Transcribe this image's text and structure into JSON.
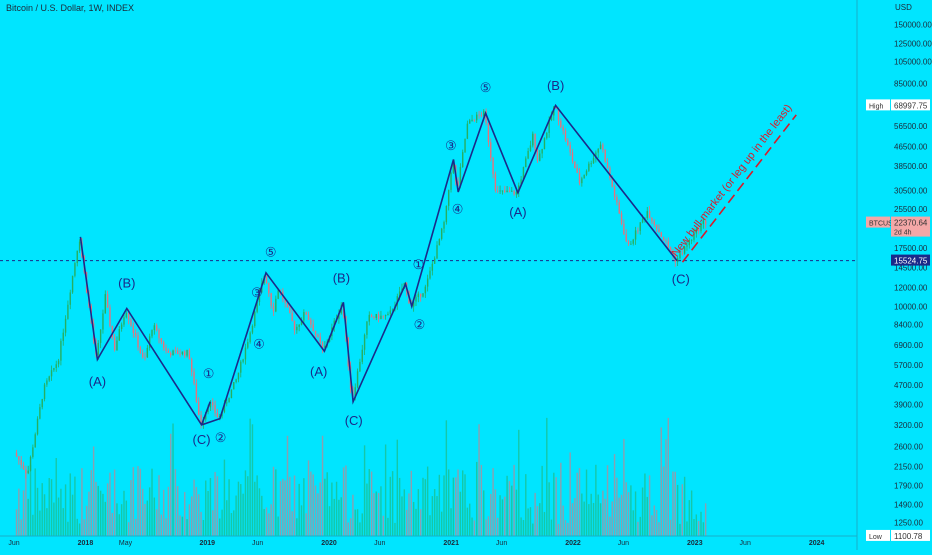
{
  "chart_data": {
    "type": "candlestick",
    "title": "Bitcoin / U.S. Dollar, 1W, INDEX",
    "symbol": "BTCUSD",
    "currency": "USD",
    "scale": "log",
    "grid": false,
    "x_ticks": [
      "Jun",
      "2018",
      "May",
      "2019",
      "Jun",
      "2020",
      "Jun",
      "2021",
      "Jun",
      "2022",
      "Jun",
      "2023",
      "Jun",
      "2024"
    ],
    "x_tick_dates": [
      "2017-06-01",
      "2018-01-01",
      "2018-05-01",
      "2019-01-01",
      "2019-06-01",
      "2020-01-01",
      "2020-06-01",
      "2021-01-01",
      "2021-06-01",
      "2022-01-01",
      "2022-06-01",
      "2023-01-01",
      "2023-06-01",
      "2024-01-01"
    ],
    "y_ticks": [
      150000,
      125000,
      105000,
      85000,
      56500,
      46500,
      38500,
      30500,
      25500,
      17500,
      14500,
      12000,
      10000,
      8400,
      6900,
      5700,
      4700,
      3900,
      3200,
      2600,
      2150,
      1790,
      1490,
      1250
    ],
    "y_tick_labels": [
      "150000.00",
      "125000.00",
      "105000.00",
      "85000.00",
      "56500.00",
      "46500.00",
      "38500.00",
      "30500.00",
      "25500.00",
      "17500.00",
      "14500.00",
      "12000.00",
      "10000.00",
      "8400.00",
      "6900.00",
      "5700.00",
      "4700.00",
      "3900.00",
      "3200.00",
      "2600.00",
      "2150.00",
      "1790.00",
      "1490.00",
      "1250.00"
    ],
    "ylim": [
      1100,
      190000
    ],
    "price_tags": [
      {
        "label": "High",
        "value": "68997.75",
        "level": 68997.75,
        "color": "#ffffff",
        "text_color": "#333333"
      },
      {
        "label": "BTCUSD",
        "value": "22370.64",
        "level": 22370.64,
        "sub": "2d 4h",
        "color": "#f4a7a7",
        "text_color": "#333333"
      },
      {
        "label": "",
        "value": "15524.75",
        "level": 15524.75,
        "color": "#1a2a8a",
        "text_color": "#ffffff"
      },
      {
        "label": "Low",
        "value": "1100.78",
        "level": 1100.78,
        "color": "#ffffff",
        "text_color": "#333333"
      }
    ],
    "support_line": 15524.75,
    "price_path": [
      [
        "2017-06-01",
        2500
      ],
      [
        "2017-07-15",
        2000
      ],
      [
        "2017-09-01",
        4500
      ],
      [
        "2017-10-15",
        6000
      ],
      [
        "2017-12-17",
        19500
      ],
      [
        "2018-02-06",
        6000
      ],
      [
        "2018-03-05",
        11000
      ],
      [
        "2018-04-01",
        6600
      ],
      [
        "2018-05-05",
        9800
      ],
      [
        "2018-06-29",
        5800
      ],
      [
        "2018-07-25",
        8400
      ],
      [
        "2018-09-05",
        6400
      ],
      [
        "2018-11-10",
        6400
      ],
      [
        "2018-12-15",
        3200
      ],
      [
        "2019-01-10",
        4000
      ],
      [
        "2019-02-08",
        3400
      ],
      [
        "2019-04-03",
        5000
      ],
      [
        "2019-05-15",
        8000
      ],
      [
        "2019-06-26",
        13800
      ],
      [
        "2019-07-20",
        9500
      ],
      [
        "2019-08-06",
        12000
      ],
      [
        "2019-09-25",
        8000
      ],
      [
        "2019-10-26",
        9500
      ],
      [
        "2019-12-18",
        6500
      ],
      [
        "2020-02-13",
        10400
      ],
      [
        "2020-03-13",
        4000
      ],
      [
        "2020-05-01",
        9000
      ],
      [
        "2020-07-01",
        9100
      ],
      [
        "2020-08-17",
        12400
      ],
      [
        "2020-09-05",
        10000
      ],
      [
        "2020-10-20",
        12000
      ],
      [
        "2020-12-17",
        23000
      ],
      [
        "2021-01-08",
        41000
      ],
      [
        "2021-01-22",
        30000
      ],
      [
        "2021-02-21",
        57000
      ],
      [
        "2021-03-13",
        61000
      ],
      [
        "2021-04-14",
        64000
      ],
      [
        "2021-05-19",
        30000
      ],
      [
        "2021-07-20",
        29800
      ],
      [
        "2021-09-07",
        52000
      ],
      [
        "2021-09-21",
        40500
      ],
      [
        "2021-11-10",
        69000
      ],
      [
        "2022-01-24",
        33000
      ],
      [
        "2022-03-29",
        48000
      ],
      [
        "2022-06-18",
        17600
      ],
      [
        "2022-08-15",
        25000
      ],
      [
        "2022-11-09",
        15500
      ],
      [
        "2023-01-14",
        21000
      ],
      [
        "2023-01-28",
        22370.64
      ]
    ],
    "wave_paths": [
      [
        [
          "2017-12-17",
          19500
        ],
        [
          "2018-02-06",
          6000
        ],
        [
          "2018-05-05",
          9800
        ],
        [
          "2018-12-15",
          3200
        ],
        [
          "2019-02-08",
          3400
        ],
        [
          "2019-06-26",
          13800
        ],
        [
          "2019-12-18",
          6500
        ],
        [
          "2020-02-13",
          10400
        ],
        [
          "2020-03-13",
          4000
        ],
        [
          "2020-08-17",
          12400
        ],
        [
          "2020-09-05",
          10000
        ],
        [
          "2021-01-08",
          41000
        ],
        [
          "2021-01-22",
          30000
        ],
        [
          "2021-04-14",
          64000
        ],
        [
          "2021-07-20",
          29800
        ],
        [
          "2021-11-10",
          69000
        ],
        [
          "2022-11-09",
          15500
        ]
      ],
      [
        [
          "2018-12-15",
          3200
        ],
        [
          "2019-01-10",
          4000
        ]
      ]
    ],
    "wave_labels": [
      {
        "text": "(A)",
        "date": "2018-02-06",
        "price": 4800
      },
      {
        "text": "(B)",
        "date": "2018-05-05",
        "price": 12400
      },
      {
        "text": "(C)",
        "date": "2018-12-15",
        "price": 2750
      },
      {
        "text": "①",
        "date": "2019-01-05",
        "price": 5200
      },
      {
        "text": "②",
        "date": "2019-02-10",
        "price": 2800
      },
      {
        "text": "③",
        "date": "2019-05-30",
        "price": 11300
      },
      {
        "text": "④",
        "date": "2019-06-05",
        "price": 6900
      },
      {
        "text": "⑤",
        "date": "2019-07-10",
        "price": 16700
      },
      {
        "text": "(A)",
        "date": "2019-12-01",
        "price": 5300
      },
      {
        "text": "(B)",
        "date": "2020-02-07",
        "price": 13000
      },
      {
        "text": "(C)",
        "date": "2020-03-15",
        "price": 3300
      },
      {
        "text": "①",
        "date": "2020-09-25",
        "price": 14800
      },
      {
        "text": "②",
        "date": "2020-09-28",
        "price": 8300
      },
      {
        "text": "③",
        "date": "2020-12-31",
        "price": 46500
      },
      {
        "text": "④",
        "date": "2021-01-20",
        "price": 25200
      },
      {
        "text": "⑤",
        "date": "2021-04-14",
        "price": 81000
      },
      {
        "text": "(A)",
        "date": "2021-07-20",
        "price": 24500
      },
      {
        "text": "(B)",
        "date": "2021-11-10",
        "price": 82500
      },
      {
        "text": "(C)",
        "date": "2022-11-20",
        "price": 12900
      }
    ],
    "projection": {
      "text": "New bull-market (or leg up in the least)",
      "from": [
        "2022-11-25",
        15300
      ],
      "to": [
        "2023-11-01",
        63000
      ],
      "color": "#d81b2a"
    }
  }
}
